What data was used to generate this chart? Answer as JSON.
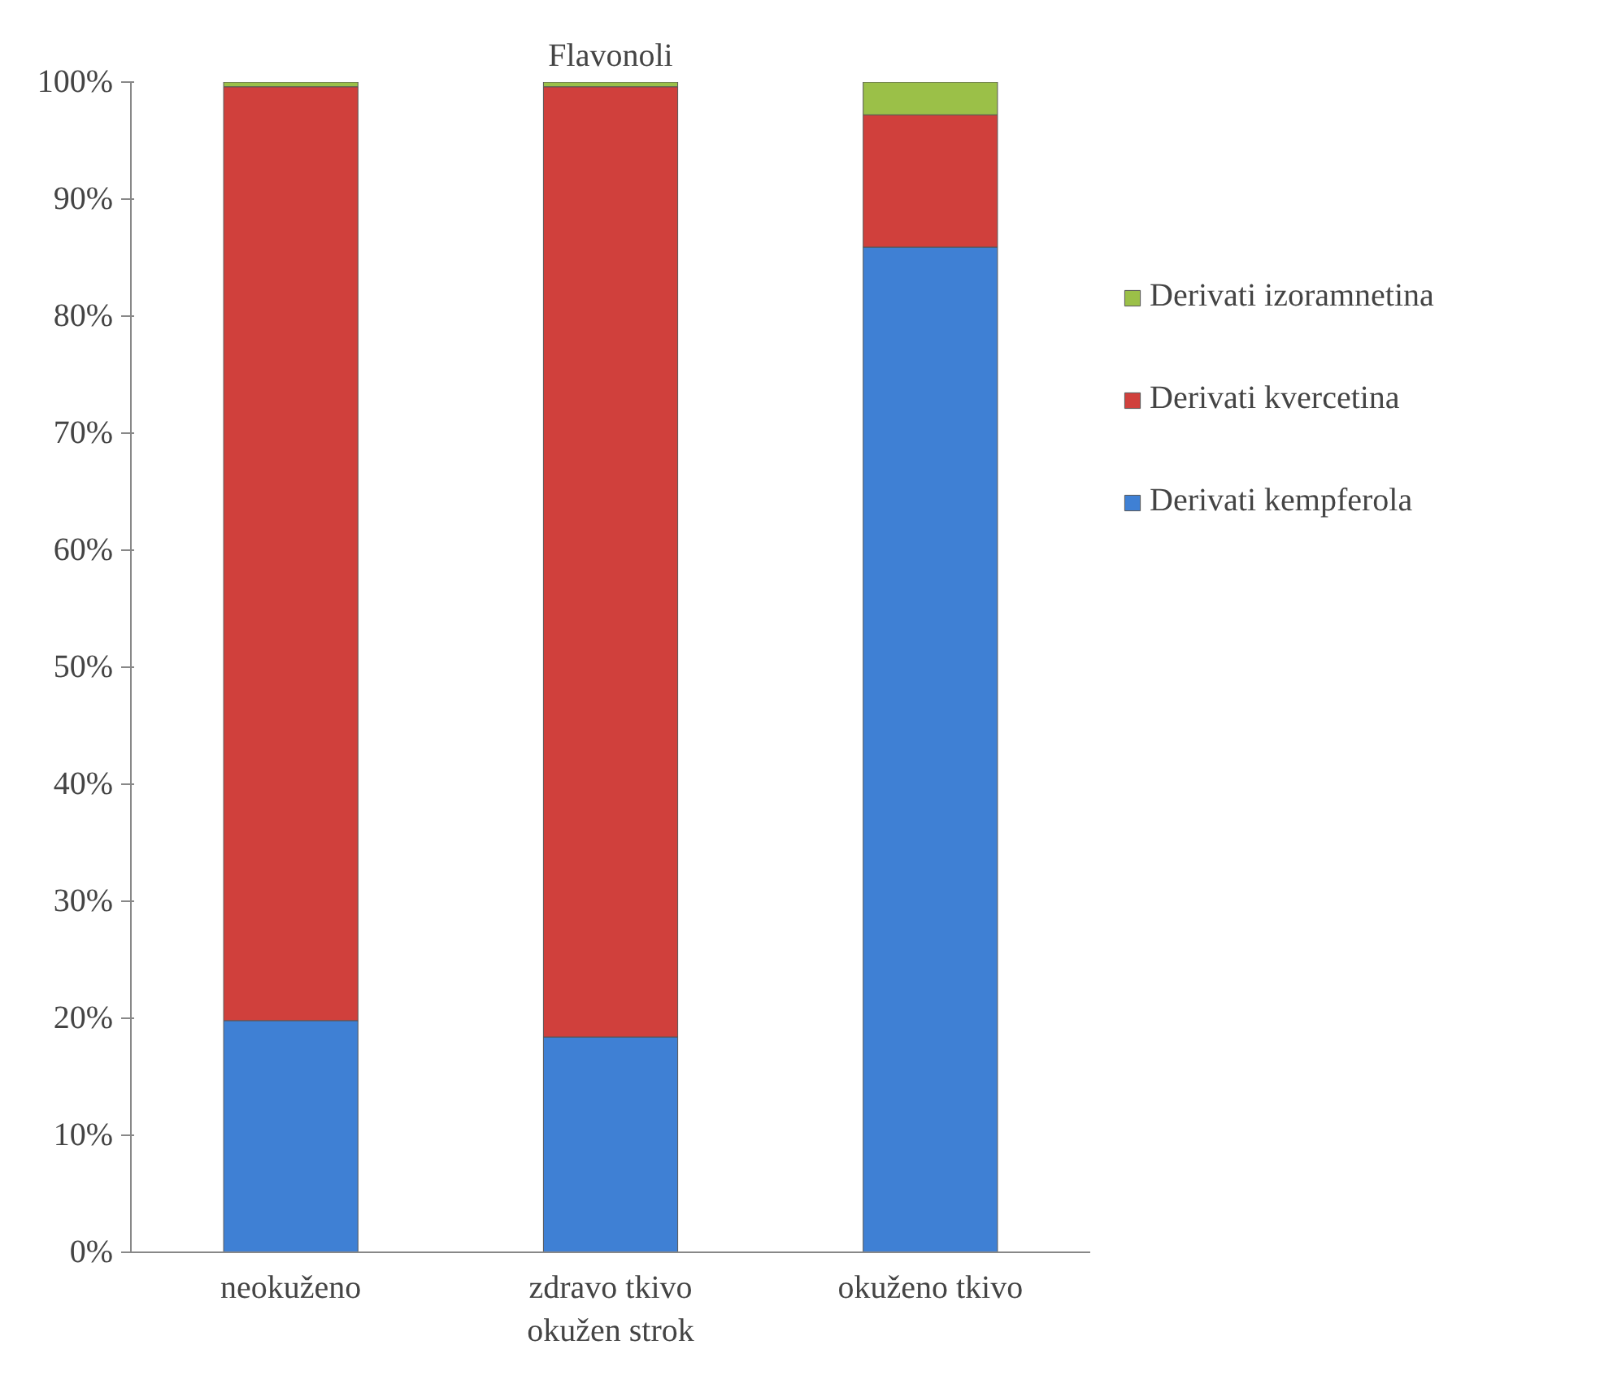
{
  "chart_data": {
    "type": "bar",
    "stacked": true,
    "title": "Flavonoli",
    "categories": [
      "neokuženo",
      "zdravo tkivo\nokužen strok",
      "okuženo tkivo"
    ],
    "series": [
      {
        "name": "Derivati kempferola",
        "color": "#3f80d4",
        "values": [
          19.8,
          18.4,
          85.9
        ]
      },
      {
        "name": "Derivati kvercetina",
        "color": "#d0403c",
        "values": [
          79.8,
          81.2,
          11.3
        ]
      },
      {
        "name": "Derivati izoramnetina",
        "color": "#9bc048",
        "values": [
          0.4,
          0.4,
          2.8
        ]
      }
    ],
    "ylim": [
      0,
      100
    ],
    "yticks": [
      {
        "value": 0,
        "label": "0%"
      },
      {
        "value": 10,
        "label": "10%"
      },
      {
        "value": 20,
        "label": "20%"
      },
      {
        "value": 30,
        "label": "30%"
      },
      {
        "value": 40,
        "label": "40%"
      },
      {
        "value": 50,
        "label": "50%"
      },
      {
        "value": 60,
        "label": "60%"
      },
      {
        "value": 70,
        "label": "70%"
      },
      {
        "value": 80,
        "label": "80%"
      },
      {
        "value": 90,
        "label": "90%"
      },
      {
        "value": 100,
        "label": "100%"
      }
    ],
    "grid": false,
    "legend": "right"
  }
}
